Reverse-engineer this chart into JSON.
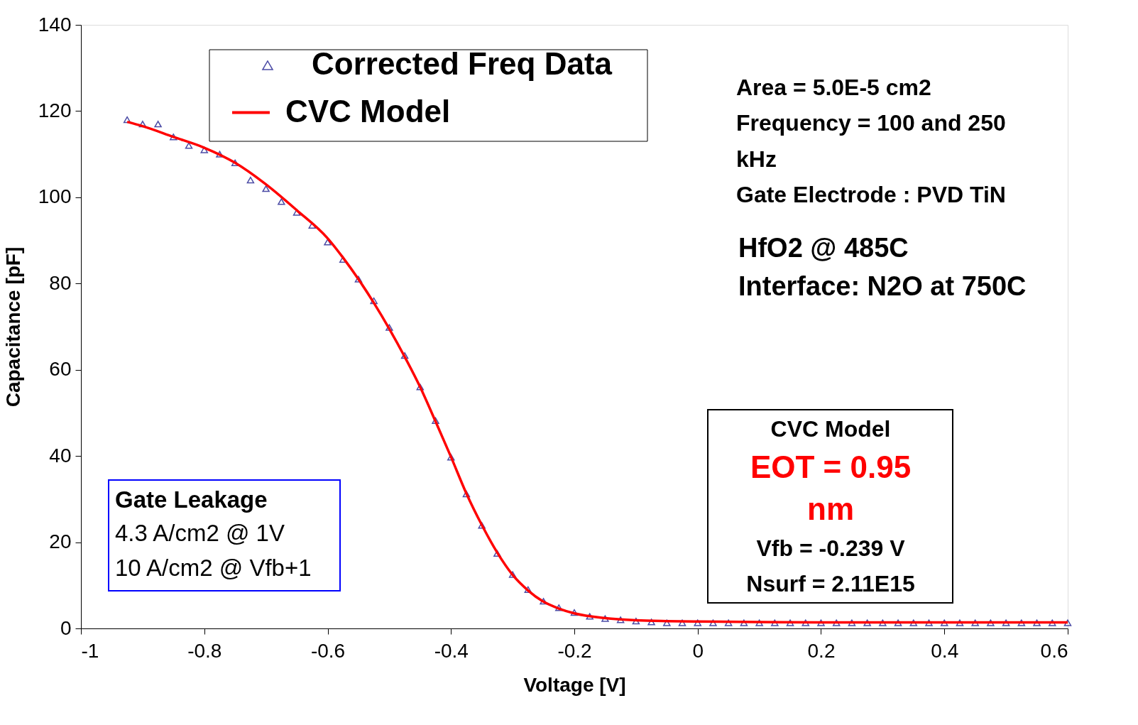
{
  "chart_data": {
    "type": "scatter",
    "xlabel": "Voltage [V]",
    "ylabel": "Capacitance [pF]",
    "xlim": [
      -1,
      0.6
    ],
    "xticks": [
      -1,
      -0.8,
      -0.6,
      -0.4,
      -0.2,
      0,
      0.2,
      0.4,
      0.6
    ],
    "ylim": [
      0,
      140
    ],
    "yticks": [
      0,
      20,
      40,
      60,
      80,
      100,
      120,
      140
    ],
    "grid": false,
    "legend": "top left",
    "series": [
      {
        "name": "Corrected Freq Data",
        "marker": "triangle",
        "color": "#000080",
        "x": [
          -0.925,
          -0.9,
          -0.875,
          -0.85,
          -0.825,
          -0.8,
          -0.775,
          -0.75,
          -0.725,
          -0.7,
          -0.675,
          -0.65,
          -0.625,
          -0.6,
          -0.575,
          -0.55,
          -0.525,
          -0.5,
          -0.475,
          -0.45,
          -0.425,
          -0.4,
          -0.375,
          -0.35,
          -0.325,
          -0.3,
          -0.275,
          -0.25,
          -0.225,
          -0.2,
          -0.175,
          -0.15,
          -0.125,
          -0.1,
          -0.075,
          -0.05,
          -0.025,
          0,
          0.025,
          0.05,
          0.075,
          0.1,
          0.125,
          0.15,
          0.175,
          0.2,
          0.225,
          0.25,
          0.275,
          0.3,
          0.325,
          0.35,
          0.375,
          0.4,
          0.425,
          0.45,
          0.475,
          0.5,
          0.525,
          0.55,
          0.575,
          0.6
        ],
        "values": [
          118,
          117,
          117,
          114,
          112,
          111,
          110,
          108,
          104,
          102,
          99,
          96.5,
          93.5,
          89.6,
          85.6,
          81,
          76,
          69.8,
          63.3,
          56,
          48.2,
          39.7,
          31.2,
          23.9,
          17.4,
          12.5,
          9,
          6.3,
          4.8,
          3.7,
          2.8,
          2.3,
          2,
          1.7,
          1.5,
          1.3,
          1.3,
          1.3,
          1.3,
          1.3,
          1.3,
          1.3,
          1.3,
          1.3,
          1.3,
          1.3,
          1.3,
          1.3,
          1.3,
          1.3,
          1.3,
          1.3,
          1.3,
          1.3,
          1.3,
          1.3,
          1.3,
          1.3,
          1.3,
          1.3,
          1.3,
          1.3
        ]
      },
      {
        "name": "CVC Model",
        "type": "line",
        "marker": "none",
        "color": "#ff0000",
        "line_style": "solid",
        "x": [
          -0.925,
          -0.9,
          -0.85,
          -0.8,
          -0.75,
          -0.7,
          -0.65,
          -0.6,
          -0.575,
          -0.55,
          -0.525,
          -0.5,
          -0.475,
          -0.45,
          -0.425,
          -0.4,
          -0.375,
          -0.35,
          -0.325,
          -0.3,
          -0.275,
          -0.25,
          -0.225,
          -0.2,
          -0.15,
          -0.1,
          -0.05,
          0,
          0.1,
          0.2,
          0.3,
          0.4,
          0.5,
          0.6
        ],
        "values": [
          117.5,
          116.5,
          114,
          111.5,
          108,
          103,
          97,
          90.5,
          86,
          81,
          75.5,
          69.5,
          63,
          56,
          48,
          39.8,
          31.3,
          24,
          17.6,
          12.4,
          8.8,
          6.2,
          4.6,
          3.5,
          2.4,
          1.9,
          1.7,
          1.6,
          1.5,
          1.4,
          1.4,
          1.4,
          1.4,
          1.4
        ]
      }
    ],
    "annotations": [
      "Area = 5.0E-5 cm2",
      "Frequency = 100 and 250",
      "kHz",
      "Gate Electrode : PVD TiN",
      "HfO2 @ 485C",
      "Interface: N2O at 750C",
      "Gate Leakage",
      "4.3 A/cm2 @ 1V",
      "10 A/cm2 @ Vfb+1",
      "CVC Model",
      "EOT = 0.95",
      "nm",
      "Vfb = -0.239 V",
      "Nsurf = 2.11E15"
    ]
  }
}
